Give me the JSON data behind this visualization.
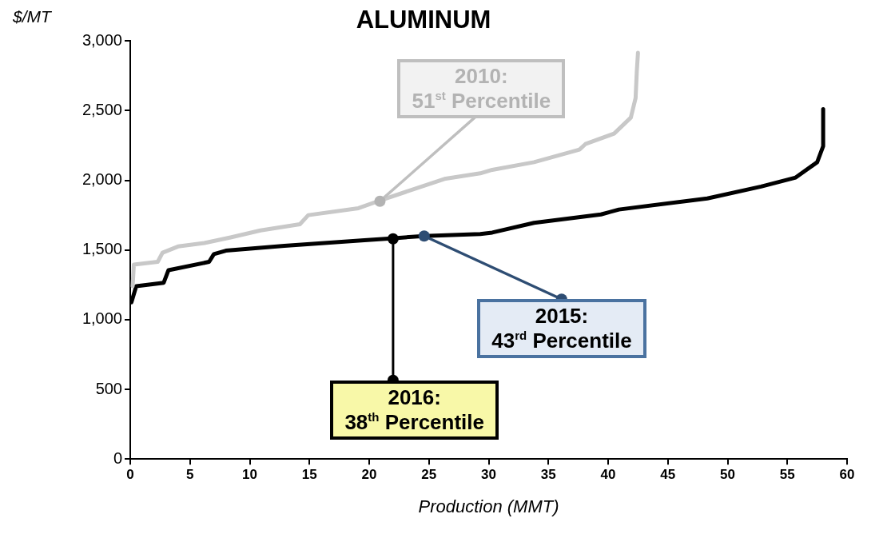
{
  "chart_data": {
    "type": "line",
    "title": "ALUMINUM",
    "xlabel": "Production (MMT)",
    "ylabel": "$/MT",
    "xlim": [
      0,
      60
    ],
    "xticks": [
      0,
      5,
      10,
      15,
      20,
      25,
      30,
      35,
      40,
      45,
      50,
      55,
      60
    ],
    "ylim": [
      0,
      3000
    ],
    "yticks": [
      {
        "value": 0,
        "label": "0"
      },
      {
        "value": 500,
        "label": "500"
      },
      {
        "value": 1000,
        "label": "1,000"
      },
      {
        "value": 1500,
        "label": "1,500"
      },
      {
        "value": 2000,
        "label": "2,000"
      },
      {
        "value": 2500,
        "label": "2,500"
      },
      {
        "value": 3000,
        "label": "3,000"
      }
    ],
    "grid": false,
    "legend": false,
    "marker": "none",
    "line_style": "solid",
    "series": [
      {
        "color": "#c8c8c8",
        "x": [
          0.2,
          0.3,
          2.3,
          2.7,
          4,
          6.2,
          8.4,
          10.9,
          14.2,
          14.9,
          19.1,
          20.9,
          26.3,
          29.3,
          30.3,
          33.8,
          37.6,
          38.1,
          40.5,
          41.9,
          42.3,
          42.4,
          42.5
        ],
        "values": [
          1240,
          1395,
          1415,
          1480,
          1525,
          1550,
          1590,
          1640,
          1685,
          1750,
          1800,
          1855,
          2010,
          2050,
          2075,
          2130,
          2220,
          2260,
          2335,
          2450,
          2590,
          2780,
          2915
        ]
      },
      {
        "color": "#000000",
        "x": [
          0.1,
          0.5,
          2.8,
          3.2,
          6.6,
          7,
          8,
          12.9,
          19.6,
          22.1,
          24.6,
          29.3,
          30.3,
          33.8,
          39.4,
          40.9,
          48.3,
          52.8,
          55.7,
          57.5,
          58,
          58
        ],
        "values": [
          1125,
          1240,
          1265,
          1355,
          1415,
          1470,
          1495,
          1530,
          1570,
          1585,
          1600,
          1615,
          1625,
          1695,
          1755,
          1790,
          1870,
          1955,
          2020,
          2130,
          2245,
          2510
        ]
      }
    ],
    "annotations": [
      {
        "text": "2010:\n51$^{st}$ Percentile",
        "x": 20.9,
        "y": 1850
      },
      {
        "text": "2015:\n43$^{rd}$ Percentile",
        "x": 24.6,
        "y": 1600
      },
      {
        "text": "2016:\n38$^{th}$ Percentile",
        "x": 22,
        "y": 1580
      }
    ]
  }
}
